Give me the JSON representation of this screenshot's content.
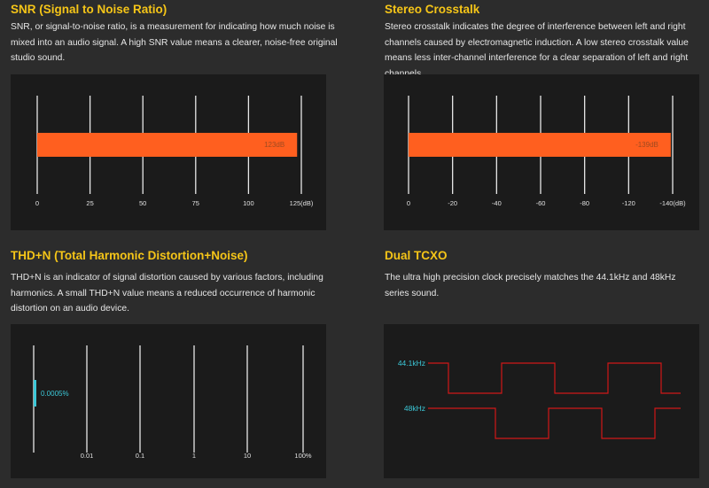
{
  "snr": {
    "title": "SNR (Signal to Noise Ratio)",
    "description": "SNR, or signal-to-noise ratio, is a measurement for indicating how much noise is mixed into an audio signal. A high SNR value means a clearer, noise-free original studio sound."
  },
  "crosstalk": {
    "title": "Stereo Crosstalk",
    "description": "Stereo crosstalk indicates the degree of interference between left and right channels caused by electromagnetic induction. A low stereo crosstalk value means less inter-channel interference for a clear separation of left and right channels."
  },
  "thd": {
    "title": "THD+N (Total Harmonic Distortion+Noise)",
    "description": "THD+N is an indicator of signal distortion caused by various factors, including harmonics. A small THD+N value means a reduced occurrence of harmonic distortion on an audio device."
  },
  "tcxo": {
    "title": "Dual TCXO",
    "description": "The ultra high precision clock precisely matches the 44.1kHz and 48kHz series sound."
  },
  "colors": {
    "title": "#f5c518",
    "bar": "#ff5f1f",
    "thd_marker": "#3cc8d8",
    "wave": "#d01818"
  },
  "chart_data": [
    {
      "type": "bar",
      "orientation": "horizontal",
      "ticks": [
        "0",
        "25",
        "50",
        "75",
        "100",
        "125(dB)"
      ],
      "domain": [
        0,
        125
      ],
      "values": [
        123
      ],
      "value_label": "123dB"
    },
    {
      "type": "bar",
      "orientation": "horizontal",
      "ticks": [
        "0",
        "-20",
        "-40",
        "-60",
        "-80",
        "-120",
        "-140(dB)"
      ],
      "domain": [
        0,
        -140
      ],
      "values": [
        -139
      ],
      "value_label": "-139dB"
    },
    {
      "type": "bar",
      "orientation": "horizontal",
      "scale": "log",
      "ticks": [
        "0.01",
        "0.1",
        "1",
        "10",
        "100%"
      ],
      "values": [
        0.0005
      ],
      "value_label": "0.0005%"
    },
    {
      "type": "line",
      "series": [
        {
          "name": "44.1kHz",
          "shape": "square-wave"
        },
        {
          "name": "48kHz",
          "shape": "square-wave"
        }
      ]
    }
  ]
}
